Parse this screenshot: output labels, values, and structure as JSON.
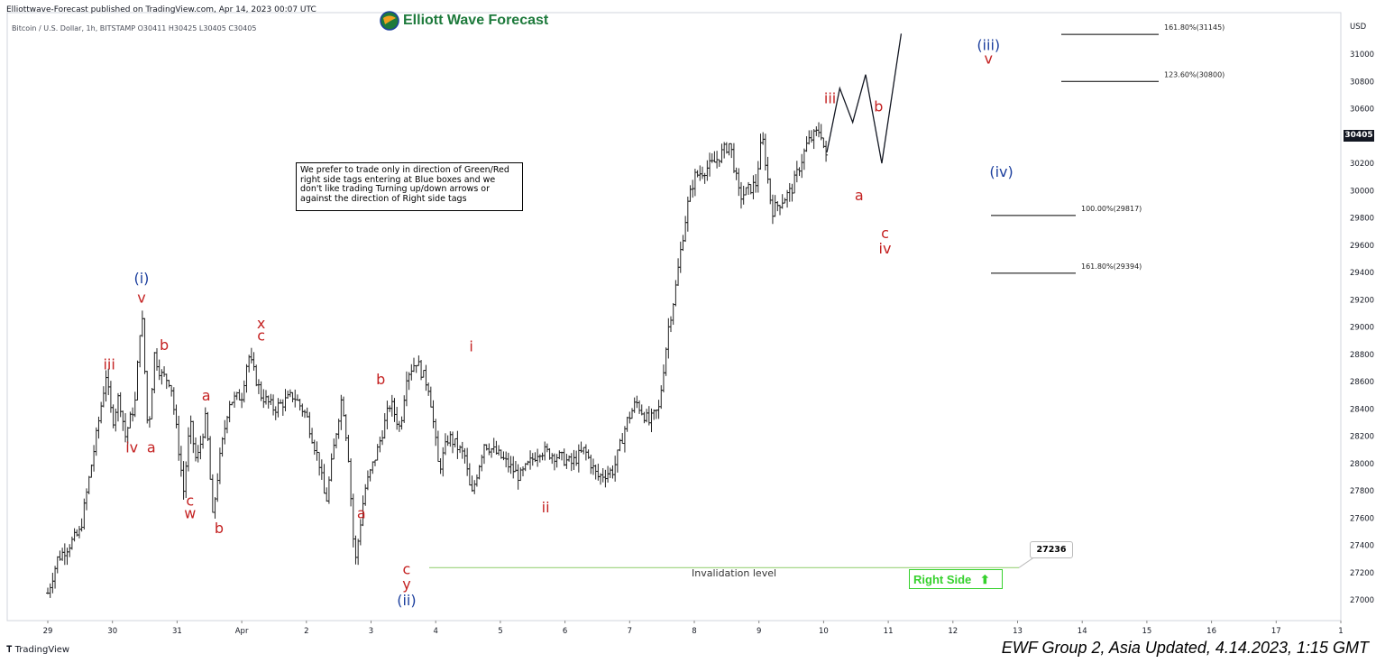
{
  "header": {
    "published": "Elliottwave-Forecast published on TradingView.com, Apr 14, 2023 00:07 UTC",
    "symbol_line": "Bitcoin / U.S. Dollar, 1h, BITSTAMP  O30411  H30425  L30405  C30405"
  },
  "brand": {
    "name": "Elliott Wave Forecast",
    "color": "#1e7a3c"
  },
  "note_text": "We prefer to trade only in direction of Green/Red right side tags entering at Blue boxes and we don't like trading Turning up/down arrows or against the direction of Right side tags",
  "invalidation_label": "Invalidation level",
  "invalidation_value": "27236",
  "right_side_label": "Right Side",
  "right_side_color": "#36d12d",
  "last_price": "30405",
  "currency": "USD",
  "footer": {
    "tradingview": "TradingView",
    "update": "EWF Group 2, Asia Updated, 4.14.2023, 1:15 GMT"
  },
  "chart_data": {
    "type": "ohlc",
    "timeframe": "1h",
    "y_range": [
      26850,
      31500
    ],
    "y_ticks": [
      27000,
      27200,
      27400,
      27600,
      27800,
      28000,
      28200,
      28400,
      28600,
      28800,
      29000,
      29200,
      29400,
      29600,
      29800,
      30000,
      30200,
      30400,
      30600,
      30800,
      31000
    ],
    "x_ticks": [
      "29",
      "30",
      "31",
      "Apr",
      "2",
      "3",
      "4",
      "5",
      "6",
      "7",
      "8",
      "9",
      "10",
      "11",
      "12",
      "13",
      "14",
      "15",
      "16",
      "17",
      "1"
    ],
    "price_path": [
      [
        0,
        27050
      ],
      [
        0.15,
        27300
      ],
      [
        0.5,
        27500
      ],
      [
        0.75,
        28200
      ],
      [
        0.9,
        28650
      ],
      [
        1.0,
        28300
      ],
      [
        1.1,
        28500
      ],
      [
        1.2,
        28200
      ],
      [
        1.35,
        28450
      ],
      [
        1.45,
        29150
      ],
      [
        1.55,
        28200
      ],
      [
        1.65,
        28800
      ],
      [
        1.75,
        28650
      ],
      [
        1.9,
        28600
      ],
      [
        2.1,
        27800
      ],
      [
        2.2,
        28300
      ],
      [
        2.3,
        28000
      ],
      [
        2.45,
        28350
      ],
      [
        2.55,
        27600
      ],
      [
        2.65,
        28000
      ],
      [
        2.8,
        28450
      ],
      [
        3.0,
        28500
      ],
      [
        3.1,
        28800
      ],
      [
        3.3,
        28500
      ],
      [
        3.5,
        28400
      ],
      [
        3.8,
        28500
      ],
      [
        4.0,
        28350
      ],
      [
        4.2,
        28000
      ],
      [
        4.3,
        27700
      ],
      [
        4.45,
        28200
      ],
      [
        4.55,
        28500
      ],
      [
        4.65,
        28050
      ],
      [
        4.75,
        27250
      ],
      [
        4.9,
        27800
      ],
      [
        5.1,
        28100
      ],
      [
        5.3,
        28450
      ],
      [
        5.45,
        28250
      ],
      [
        5.55,
        28650
      ],
      [
        5.7,
        28750
      ],
      [
        5.9,
        28550
      ],
      [
        6.05,
        27950
      ],
      [
        6.2,
        28200
      ],
      [
        6.45,
        28050
      ],
      [
        6.55,
        27750
      ],
      [
        6.75,
        28150
      ],
      [
        7.0,
        28050
      ],
      [
        7.3,
        27900
      ],
      [
        7.6,
        28100
      ],
      [
        7.9,
        28050
      ],
      [
        8.1,
        28000
      ],
      [
        8.3,
        28100
      ],
      [
        8.5,
        27900
      ],
      [
        8.75,
        27950
      ],
      [
        8.95,
        28300
      ],
      [
        9.1,
        28450
      ],
      [
        9.3,
        28300
      ],
      [
        9.45,
        28400
      ],
      [
        9.6,
        29000
      ],
      [
        9.7,
        29250
      ],
      [
        9.8,
        29600
      ],
      [
        9.9,
        29900
      ],
      [
        10.0,
        30100
      ],
      [
        10.3,
        30200
      ],
      [
        10.55,
        30350
      ],
      [
        10.7,
        29950
      ],
      [
        10.95,
        30050
      ],
      [
        11.05,
        30400
      ],
      [
        11.2,
        29850
      ],
      [
        11.5,
        30000
      ],
      [
        11.75,
        30350
      ],
      [
        11.95,
        30450
      ],
      [
        12.05,
        30200
      ]
    ],
    "projection": [
      [
        12.05,
        30280
      ],
      [
        12.25,
        30750
      ],
      [
        12.45,
        30500
      ],
      [
        12.65,
        30850
      ],
      [
        12.9,
        30200
      ],
      [
        13.2,
        31150
      ]
    ],
    "wave_labels": [
      {
        "text": "(i)",
        "x": 1.45,
        "y": 29320,
        "color": "#1c3f9e"
      },
      {
        "text": "v",
        "x": 1.45,
        "y": 29180,
        "color": "#c42121"
      },
      {
        "text": "iii",
        "x": 0.95,
        "y": 28690,
        "color": "#c42121"
      },
      {
        "text": "iv",
        "x": 1.3,
        "y": 28080,
        "color": "#c42121"
      },
      {
        "text": "a",
        "x": 1.6,
        "y": 28080,
        "color": "#c42121"
      },
      {
        "text": "b",
        "x": 1.8,
        "y": 28830,
        "color": "#c42121"
      },
      {
        "text": "c",
        "x": 2.2,
        "y": 27690,
        "color": "#c42121"
      },
      {
        "text": "w",
        "x": 2.2,
        "y": 27600,
        "color": "#c42121"
      },
      {
        "text": "a",
        "x": 2.45,
        "y": 28460,
        "color": "#c42121"
      },
      {
        "text": "b",
        "x": 2.65,
        "y": 27490,
        "color": "#c42121"
      },
      {
        "text": "x",
        "x": 3.3,
        "y": 28990,
        "color": "#c42121"
      },
      {
        "text": "c",
        "x": 3.3,
        "y": 28900,
        "color": "#c42121"
      },
      {
        "text": "b",
        "x": 5.15,
        "y": 28580,
        "color": "#c42121"
      },
      {
        "text": "a",
        "x": 4.85,
        "y": 27600,
        "color": "#c42121"
      },
      {
        "text": "c",
        "x": 5.55,
        "y": 27190,
        "color": "#c42121"
      },
      {
        "text": "y",
        "x": 5.55,
        "y": 27080,
        "color": "#c42121"
      },
      {
        "text": "(ii)",
        "x": 5.55,
        "y": 26960,
        "color": "#1c3f9e"
      },
      {
        "text": "i",
        "x": 6.55,
        "y": 28820,
        "color": "#c42121"
      },
      {
        "text": "ii",
        "x": 7.7,
        "y": 27640,
        "color": "#c42121"
      },
      {
        "text": "iii",
        "x": 12.1,
        "y": 30640,
        "color": "#c42121"
      },
      {
        "text": "a",
        "x": 12.55,
        "y": 29930,
        "color": "#c42121"
      },
      {
        "text": "b",
        "x": 12.85,
        "y": 30580,
        "color": "#c42121"
      },
      {
        "text": "c",
        "x": 12.95,
        "y": 29650,
        "color": "#c42121"
      },
      {
        "text": "iv",
        "x": 12.95,
        "y": 29540,
        "color": "#c42121"
      },
      {
        "text": "v",
        "x": 14.55,
        "y": 30930,
        "color": "#c42121"
      },
      {
        "text": "(iii)",
        "x": 14.55,
        "y": 31030,
        "color": "#1c3f9e"
      },
      {
        "text": "(iv)",
        "x": 14.75,
        "y": 30100,
        "color": "#1c3f9e"
      }
    ],
    "fib_levels": [
      {
        "label": "161.80%(31145)",
        "value": 31145
      },
      {
        "label": "123.60%(30800)",
        "value": 30800
      },
      {
        "label": "100.00%(29817)",
        "value": 29817
      },
      {
        "label": "161.80%(29394)",
        "value": 29394
      }
    ],
    "invalidation_level": 27236
  }
}
